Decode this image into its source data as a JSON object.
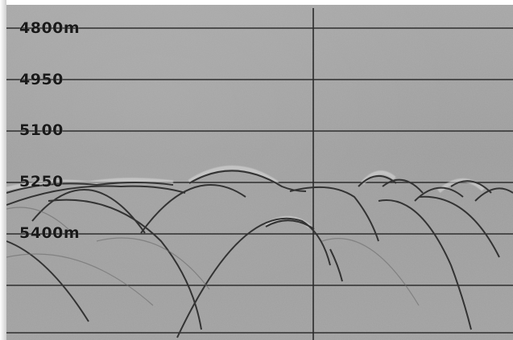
{
  "record": {
    "depth_labels": [
      "4800m",
      "4950",
      "5100",
      "5250",
      "5400m"
    ]
  },
  "palette": {
    "background": "#a0a0a0",
    "grid_line": "#2e2e2e",
    "reflection_line": "#3a3a3a",
    "reflection_highlight": "#e2e2e2",
    "label_text": "#1a1a1a"
  }
}
